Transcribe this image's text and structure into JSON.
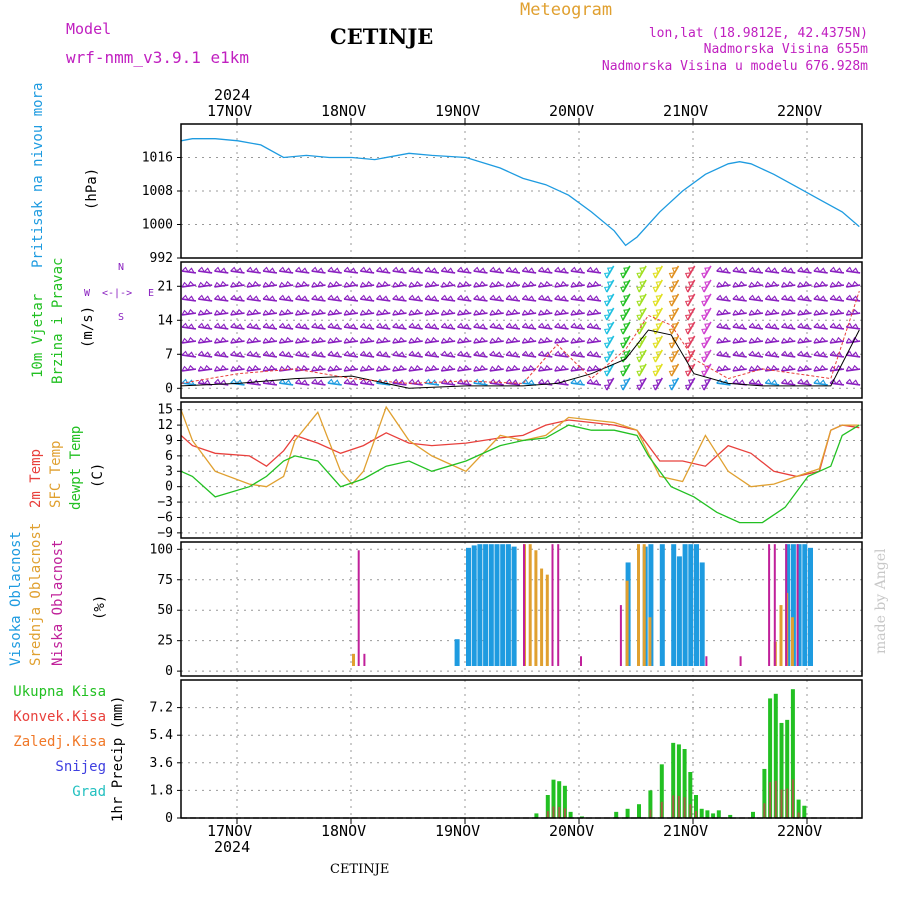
{
  "header": {
    "model_label": "Model",
    "model_name": "wrf-nmm_v3.9.1 e1km",
    "station": "CETINJE",
    "meteogram": "Meteogram",
    "coords": "lon,lat (18.9812E, 42.4375N)",
    "altitude": "Nadmorska Visina 655m",
    "model_altitude": "Nadmorska Visina u modelu 676.928m"
  },
  "footer": {
    "station": "CETINJE"
  },
  "credit": "made by Angel",
  "colors": {
    "pressure": "#1e9be0",
    "temp2m": "#e8403c",
    "sfc": "#e0a030",
    "dew": "#22c022",
    "high_cloud": "#1e9be0",
    "mid_cloud": "#e0a030",
    "low_cloud": "#c0209a",
    "precip": "#22c022",
    "conv": "#e8403c",
    "wind": "#8a20c0"
  },
  "axes": {
    "year": "2024",
    "days": [
      "17NOV",
      "18NOV",
      "19NOV",
      "20NOV",
      "21NOV",
      "22NOV"
    ]
  },
  "panels": {
    "pressure": {
      "title": "Pritisak na nivou mora",
      "unit": "(hPa)",
      "ticks": [
        "1016",
        "1008",
        "1000",
        "992"
      ]
    },
    "wind": {
      "title1": "10m Vjetar",
      "title2": "Brzina i Pravac",
      "unit": "(m/s)",
      "ticks": [
        "21",
        "14",
        "7",
        "0"
      ],
      "compass": {
        "n": "N",
        "s": "S",
        "w": "W",
        "e": "E"
      }
    },
    "temp": {
      "label1": "2m Temp",
      "label2": "SFC Temp",
      "label3": "dewpt Temp",
      "unit": "(C)",
      "ticks": [
        "15",
        "12",
        "9",
        "6",
        "3",
        "0",
        "−3",
        "−6",
        "−9"
      ]
    },
    "cloud": {
      "label1": "Visoka Oblacnost",
      "label2": "Srednja Oblacnost",
      "label3": "Niska Oblacnost",
      "unit": "(%)",
      "ticks": [
        "100",
        "75",
        "50",
        "25",
        "0"
      ]
    },
    "precip": {
      "labels": [
        {
          "text": "Ukupna Kisa",
          "color": "#22c022"
        },
        {
          "text": "Konvek.Kisa",
          "color": "#e8403c"
        },
        {
          "text": "Zaledj.Kisa",
          "color": "#f07828"
        },
        {
          "text": "Snijeg",
          "color": "#4040e0"
        },
        {
          "text": "Grad",
          "color": "#22c0c0"
        }
      ],
      "unit": "1hr Precip (mm)",
      "ticks": [
        "7.2",
        "5.4",
        "3.6",
        "1.8",
        "0"
      ]
    }
  },
  "chart_data": [
    {
      "type": "line",
      "name": "pressure",
      "ylim": [
        992,
        1024
      ],
      "x_days": [
        0,
        0.1,
        0.3,
        0.5,
        0.7,
        0.9,
        1.1,
        1.3,
        1.5,
        1.7,
        2.0,
        2.2,
        2.5,
        2.8,
        3.0,
        3.2,
        3.4,
        3.6,
        3.8,
        3.9,
        4.0,
        4.2,
        4.4,
        4.6,
        4.8,
        4.9,
        5.0,
        5.2,
        5.4,
        5.6,
        5.8,
        5.95
      ],
      "values": [
        1020,
        1020.5,
        1020.5,
        1020,
        1019,
        1016,
        1016.5,
        1016,
        1016,
        1015.5,
        1017,
        1016.5,
        1016,
        1013.5,
        1011,
        1009.5,
        1007,
        1003,
        998.5,
        995,
        997,
        1003,
        1008,
        1012,
        1014.5,
        1015,
        1014.5,
        1012,
        1009,
        1006,
        1003,
        999.5
      ]
    },
    {
      "type": "line",
      "name": "temp2m",
      "ylim": [
        -10,
        16
      ],
      "x_days": [
        0,
        0.1,
        0.3,
        0.6,
        0.75,
        0.9,
        1.0,
        1.2,
        1.4,
        1.6,
        1.8,
        2.0,
        2.2,
        2.5,
        2.8,
        3.0,
        3.2,
        3.4,
        3.6,
        3.8,
        4.0,
        4.2,
        4.4,
        4.6,
        4.8,
        5.0,
        5.2,
        5.4,
        5.6,
        5.7,
        5.8,
        5.95
      ],
      "values": [
        10,
        8,
        6.5,
        6,
        4,
        7,
        10,
        8.5,
        6.5,
        8,
        10.5,
        8.5,
        8,
        8.5,
        9.5,
        10,
        12,
        13,
        12.5,
        12,
        11,
        5,
        5,
        4,
        8,
        6.5,
        3,
        2,
        3,
        11,
        12,
        11.5
      ]
    },
    {
      "type": "line",
      "name": "sfc",
      "ylim": [
        -10,
        16
      ],
      "x_days": [
        0,
        0.1,
        0.3,
        0.6,
        0.75,
        0.9,
        1.0,
        1.2,
        1.4,
        1.5,
        1.6,
        1.8,
        2.0,
        2.2,
        2.5,
        2.8,
        3.0,
        3.2,
        3.4,
        3.6,
        3.8,
        4.0,
        4.2,
        4.4,
        4.6,
        4.8,
        5.0,
        5.2,
        5.4,
        5.6,
        5.7,
        5.8,
        5.95
      ],
      "values": [
        15,
        9,
        3,
        0.5,
        0,
        2,
        9,
        14.5,
        3,
        0.5,
        3,
        15.5,
        9,
        6,
        3,
        10,
        9,
        10,
        13.5,
        13,
        12.5,
        11,
        2,
        1,
        10,
        3,
        0,
        0.5,
        2,
        3.5,
        11,
        12,
        12
      ]
    },
    {
      "type": "line",
      "name": "dew",
      "ylim": [
        -10,
        16
      ],
      "x_days": [
        0,
        0.1,
        0.3,
        0.6,
        0.75,
        0.9,
        1.0,
        1.2,
        1.4,
        1.6,
        1.8,
        2.0,
        2.2,
        2.5,
        2.8,
        3.0,
        3.2,
        3.4,
        3.6,
        3.8,
        4.0,
        4.1,
        4.3,
        4.5,
        4.7,
        4.9,
        5.1,
        5.3,
        5.5,
        5.7,
        5.8,
        5.95
      ],
      "values": [
        3,
        2,
        -2,
        0,
        2,
        5,
        6,
        5,
        0,
        1.5,
        4,
        5,
        3,
        5,
        8,
        9,
        9.5,
        12,
        11,
        11,
        10,
        6,
        0,
        -2,
        -5,
        -7,
        -7,
        -4,
        2,
        4,
        10,
        12
      ]
    },
    {
      "type": "bar",
      "name": "precip_total",
      "ylim": [
        0,
        9
      ],
      "x_days": [
        3.1,
        3.2,
        3.25,
        3.3,
        3.35,
        3.4,
        3.5,
        3.8,
        3.9,
        4.0,
        4.1,
        4.2,
        4.3,
        4.35,
        4.4,
        4.45,
        4.5,
        4.55,
        4.6,
        4.65,
        4.7,
        4.8,
        5.0,
        5.1,
        5.15,
        5.2,
        5.25,
        5.3,
        5.35,
        5.4,
        5.45
      ],
      "values": [
        0.3,
        1.5,
        2.5,
        2.4,
        2.1,
        0.4,
        0.1,
        0.4,
        0.6,
        0.9,
        1.8,
        3.5,
        4.9,
        4.8,
        4.5,
        3.0,
        1.5,
        0.6,
        0.5,
        0.3,
        0.5,
        0.2,
        0.4,
        3.2,
        7.8,
        8.1,
        6.2,
        6.4,
        8.4,
        1.2,
        0.8
      ]
    },
    {
      "type": "bar",
      "name": "cloud",
      "ylim": [
        0,
        100
      ],
      "series": [
        {
          "name": "high",
          "x_days": [
            2.4,
            2.5,
            2.55,
            2.6,
            2.65,
            2.7,
            2.75,
            2.8,
            2.85,
            2.9,
            3.9,
            4.05,
            4.1,
            4.2,
            4.3,
            4.35,
            4.4,
            4.45,
            4.5,
            4.55,
            5.3,
            5.35,
            5.4,
            5.45,
            5.5
          ],
          "values": [
            22,
            97,
            99,
            100,
            100,
            100,
            100,
            100,
            100,
            98,
            85,
            98,
            100,
            100,
            100,
            90,
            100,
            100,
            100,
            85,
            100,
            100,
            100,
            100,
            97
          ]
        },
        {
          "name": "mid",
          "x_days": [
            1.5,
            3.0,
            3.05,
            3.1,
            3.15,
            3.2,
            3.9,
            4.0,
            4.05,
            4.1,
            5.2,
            5.25,
            5.3,
            5.35
          ],
          "values": [
            10,
            100,
            100,
            95,
            80,
            75,
            70,
            100,
            100,
            40,
            20,
            50,
            60,
            40
          ]
        },
        {
          "name": "low",
          "x_days": [
            1.55,
            1.6,
            3.0,
            3.25,
            3.3,
            3.5,
            3.85,
            4.6,
            4.9,
            5.15,
            5.2,
            5.3,
            5.4
          ],
          "values": [
            95,
            10,
            100,
            100,
            100,
            8,
            50,
            8,
            8,
            100,
            100,
            100,
            100
          ]
        }
      ]
    }
  ]
}
